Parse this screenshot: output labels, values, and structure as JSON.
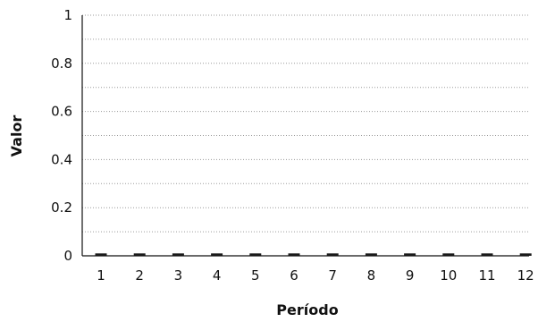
{
  "chart_data": {
    "type": "bar",
    "title": "",
    "xlabel": "Período",
    "ylabel": "Valor",
    "categories": [
      "1",
      "2",
      "3",
      "4",
      "5",
      "6",
      "7",
      "8",
      "9",
      "10",
      "11",
      "12"
    ],
    "values": [
      0.01,
      0.01,
      0.01,
      0.01,
      0.01,
      0.01,
      0.01,
      0.01,
      0.01,
      0.01,
      0.01,
      0.01
    ],
    "ylim": [
      0,
      1
    ],
    "yticks": [
      "0",
      "0.2",
      "0.4",
      "0.6",
      "0.8",
      "1"
    ],
    "grid": true,
    "legend": "none",
    "colors": {
      "bar": "#1a1a1a",
      "grid": "#9a9a9a",
      "axis": "#111111"
    }
  }
}
